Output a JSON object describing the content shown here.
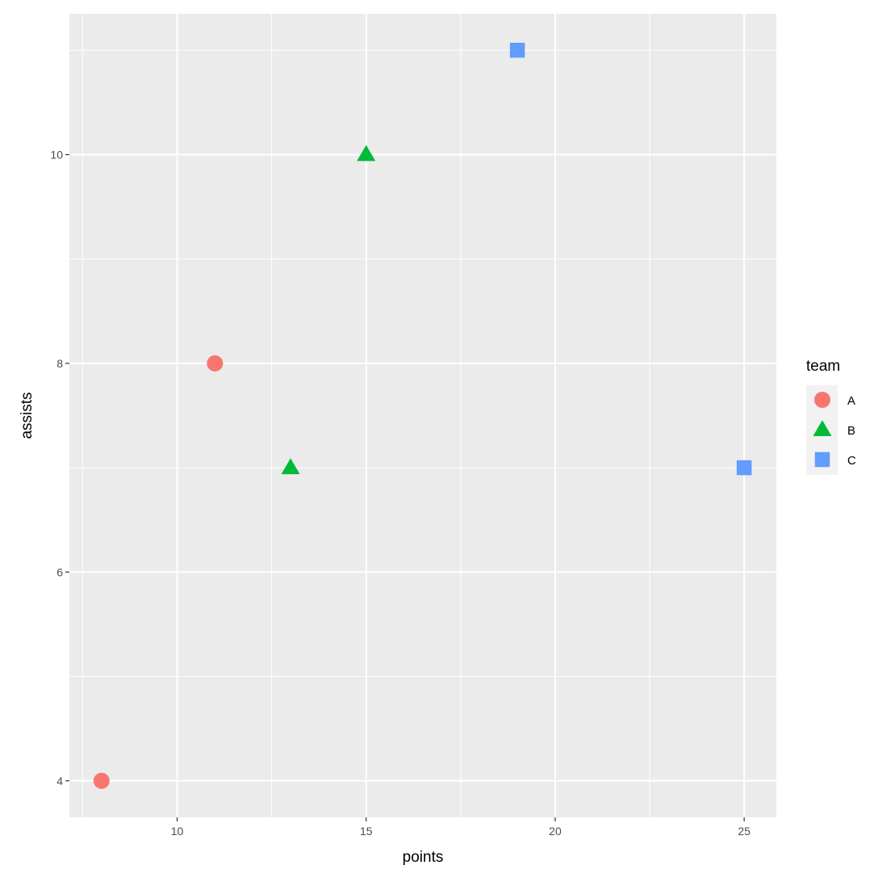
{
  "chart_data": {
    "type": "scatter",
    "title": "",
    "xlabel": "points",
    "ylabel": "assists",
    "xlim": [
      7.15,
      25.85
    ],
    "ylim": [
      3.65,
      11.35
    ],
    "x_ticks": [
      10,
      15,
      20,
      25
    ],
    "y_ticks": [
      4,
      6,
      8,
      10
    ],
    "x_minor": [
      7.5,
      12.5,
      17.5,
      22.5
    ],
    "y_minor": [
      5,
      7,
      9,
      11
    ],
    "grid": true,
    "panel_background": "#ebebeb",
    "grid_color": "#ffffff",
    "legend": {
      "title": "team",
      "placement": "right"
    },
    "series": [
      {
        "name": "A",
        "color": "#f8766d",
        "shape": "circle",
        "x": [
          8,
          11
        ],
        "y": [
          4,
          8
        ]
      },
      {
        "name": "B",
        "color": "#00ba38",
        "shape": "triangle",
        "x": [
          13,
          15
        ],
        "y": [
          7,
          10
        ]
      },
      {
        "name": "C",
        "color": "#619cff",
        "shape": "square",
        "x": [
          19,
          25
        ],
        "y": [
          11,
          7
        ]
      }
    ]
  }
}
